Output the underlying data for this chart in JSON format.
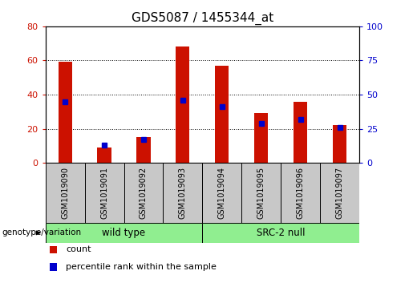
{
  "title": "GDS5087 / 1455344_at",
  "samples": [
    "GSM1019090",
    "GSM1019091",
    "GSM1019092",
    "GSM1019093",
    "GSM1019094",
    "GSM1019095",
    "GSM1019096",
    "GSM1019097"
  ],
  "counts": [
    59,
    9,
    15,
    68,
    57,
    29,
    36,
    22
  ],
  "percentiles": [
    45,
    13,
    17,
    46,
    41,
    29,
    32,
    26
  ],
  "groups": [
    {
      "label": "wild type",
      "start": 0,
      "end": 3
    },
    {
      "label": "SRC-2 null",
      "start": 4,
      "end": 7
    }
  ],
  "group_color": "#90EE90",
  "bar_color": "#CC1100",
  "percentile_color": "#0000CC",
  "ylim_left": [
    0,
    80
  ],
  "ylim_right": [
    0,
    100
  ],
  "yticks_left": [
    0,
    20,
    40,
    60,
    80
  ],
  "yticks_right": [
    0,
    25,
    50,
    75,
    100
  ],
  "background_color": "#C8C8C8",
  "plot_bg": "#FFFFFF",
  "title_fontsize": 11,
  "bar_width": 0.35,
  "legend_count_label": "count",
  "legend_percentile_label": "percentile rank within the sample",
  "genotype_label": "genotype/variation"
}
